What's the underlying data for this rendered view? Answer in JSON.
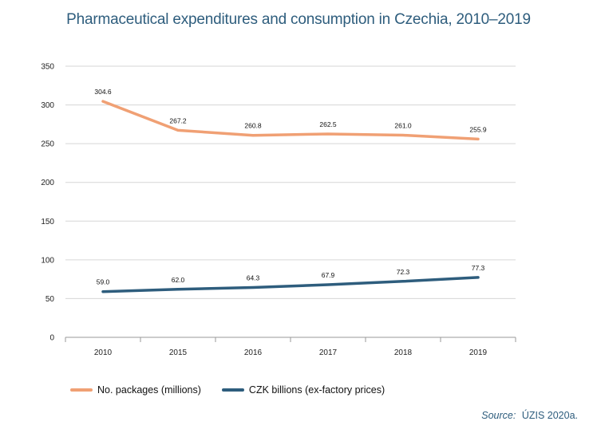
{
  "chart_data": {
    "type": "line",
    "title": "Pharmaceutical expenditures and consumption in Czechia, 2010–2019",
    "categories": [
      "2010",
      "2015",
      "2016",
      "2017",
      "2018",
      "2019"
    ],
    "series": [
      {
        "name": "No. packages (millions)",
        "values": [
          304.6,
          267.2,
          260.8,
          262.5,
          261.0,
          255.9
        ],
        "labels": [
          "304.6",
          "267.2",
          "260.8",
          "262.5",
          "261.0",
          "255.9"
        ],
        "color": "#f0a074"
      },
      {
        "name": "CZK billions (ex-factory prices)",
        "values": [
          59.0,
          62.0,
          64.3,
          67.9,
          72.3,
          77.3
        ],
        "labels": [
          "59.0",
          "62.0",
          "64.3",
          "67.9",
          "72.3",
          "77.3"
        ],
        "color": "#2e5d7d"
      }
    ],
    "ylim": [
      0,
      350
    ],
    "yticks": [
      "0",
      "50",
      "100",
      "150",
      "200",
      "250",
      "300",
      "350"
    ],
    "ytick_values": [
      0,
      50,
      100,
      150,
      200,
      250,
      300,
      350
    ],
    "grid": true,
    "legend_position": "bottom-left",
    "xlabel": "",
    "ylabel": ""
  },
  "source": {
    "label": "Source:",
    "text": "ÚZIS 2020a."
  }
}
